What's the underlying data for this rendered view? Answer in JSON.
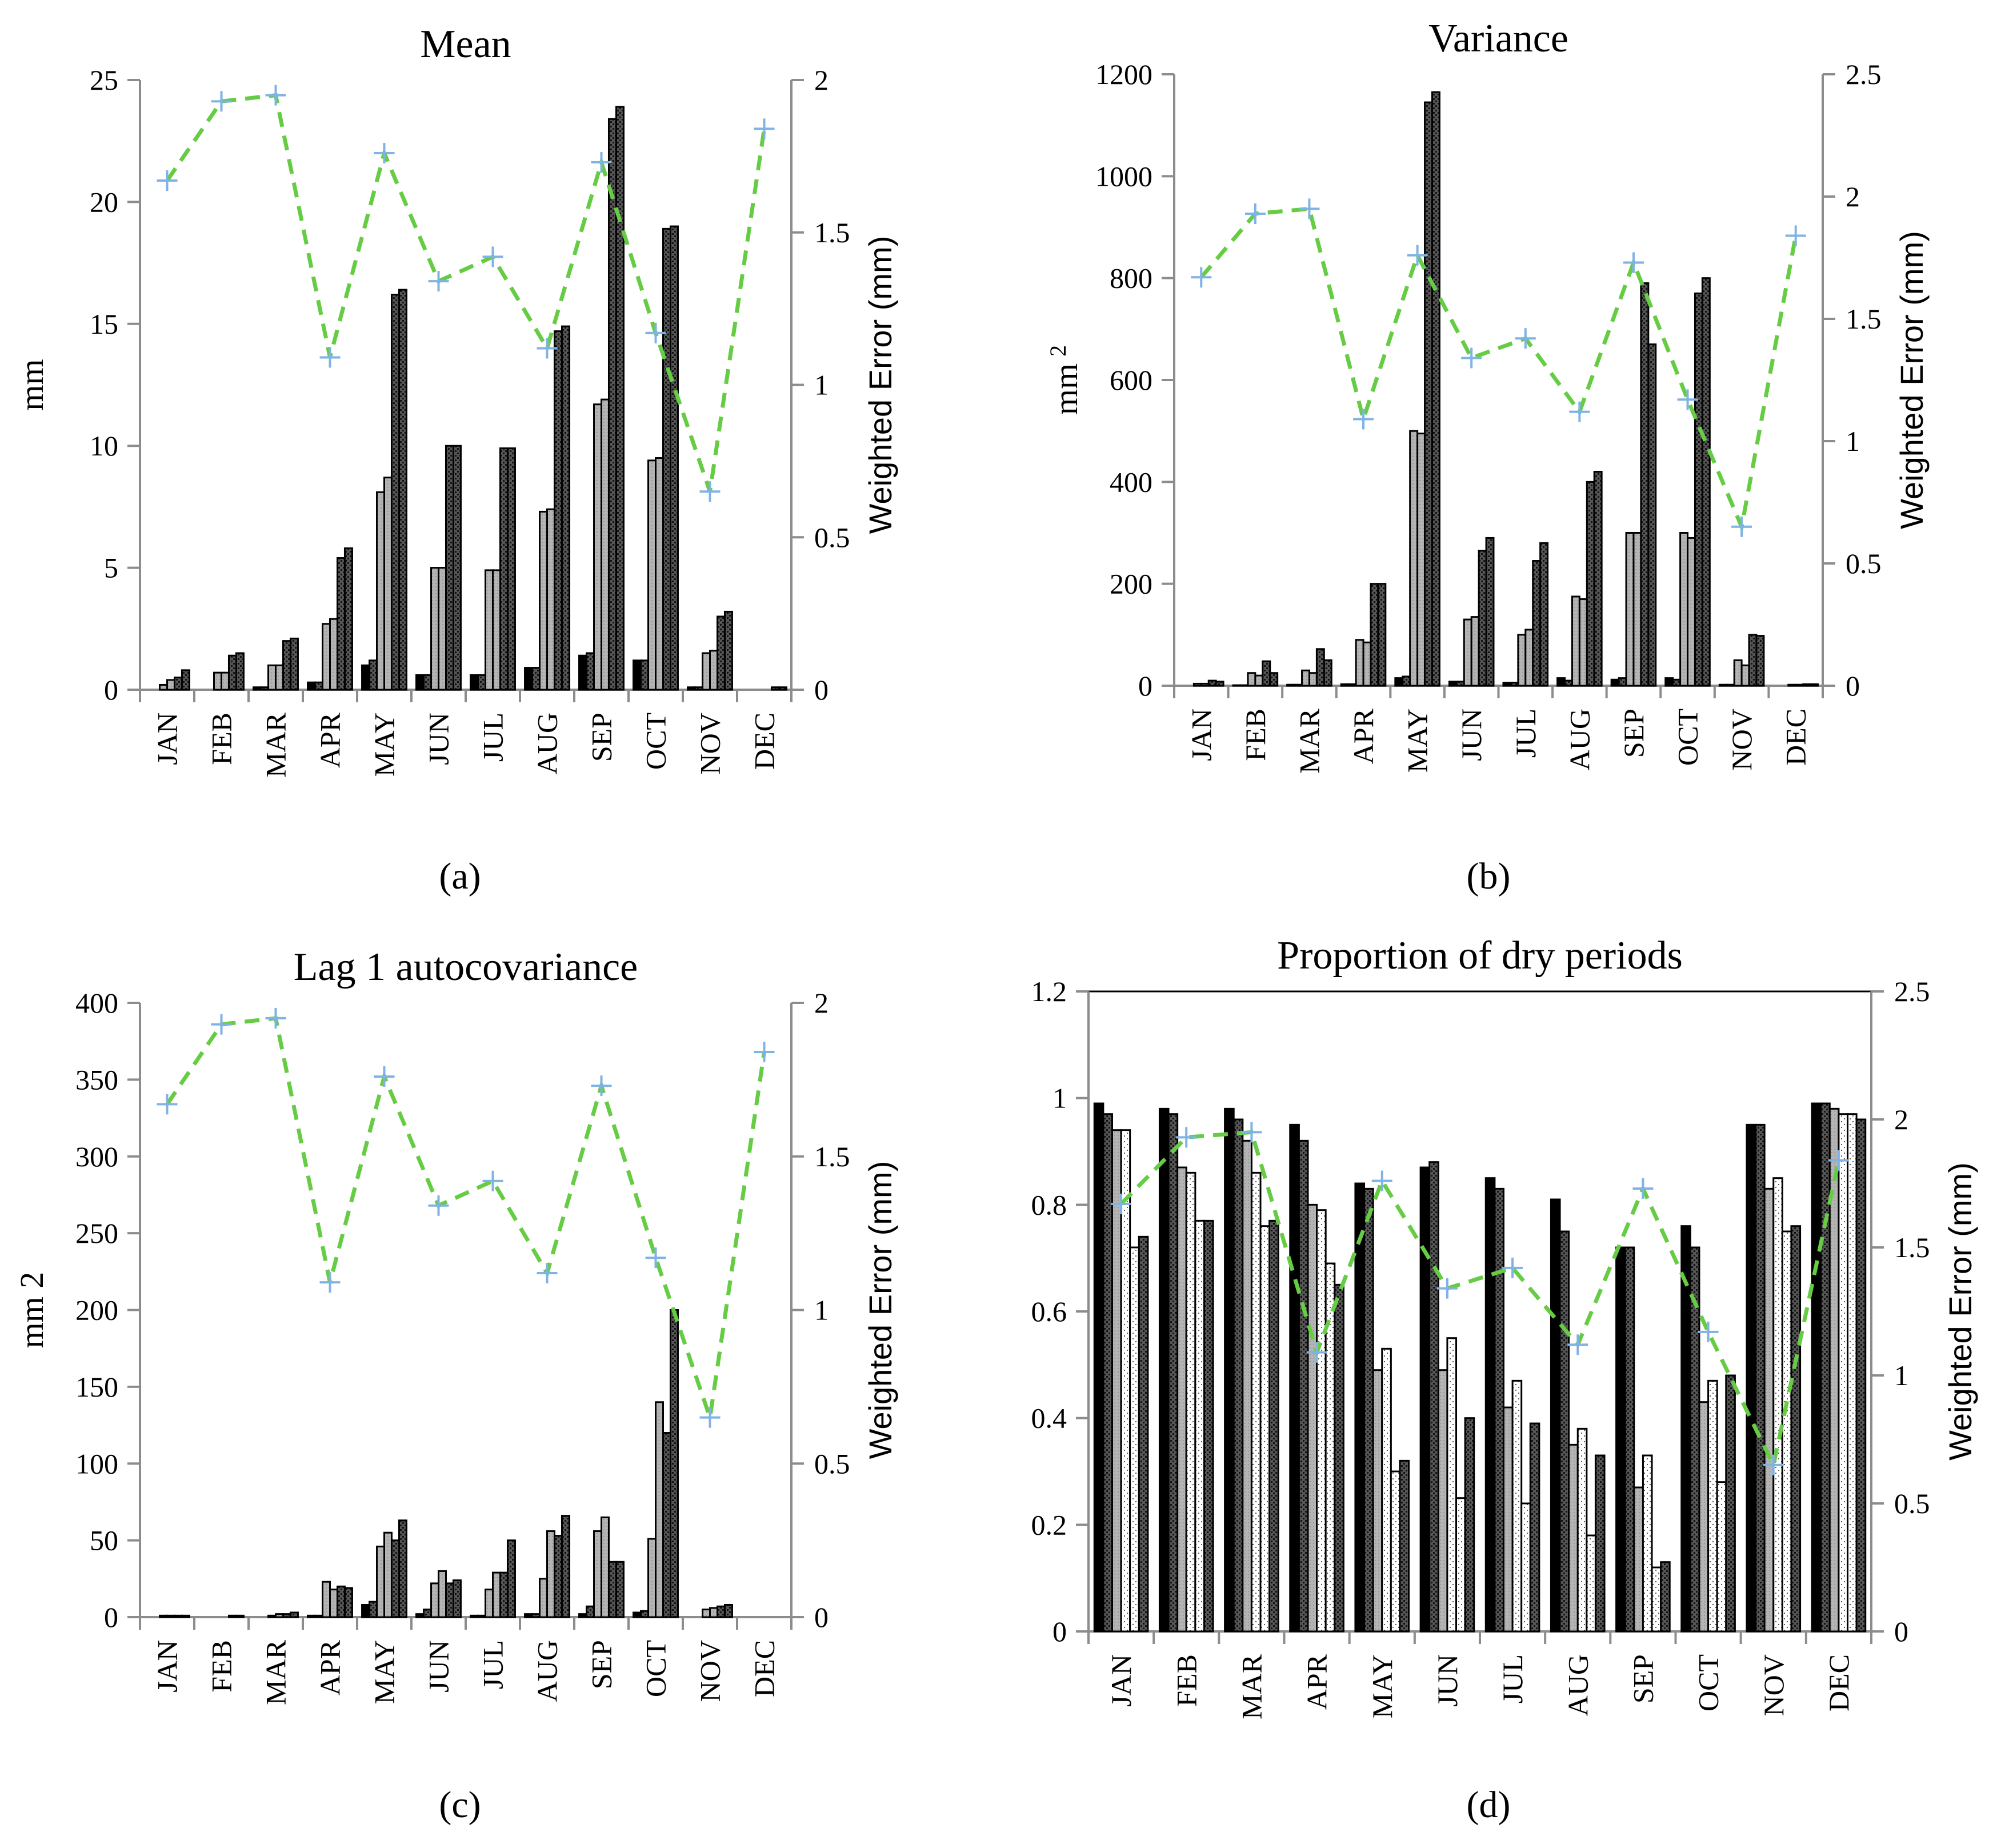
{
  "figure": {
    "colors": {
      "bar_black": "#000000",
      "bar_dark": "#555555",
      "bar_gray": "#b4b4b4",
      "bar_white": "#ffffff",
      "error_line": "#66cc44",
      "error_marker": "#7fb2e5",
      "axis": "#8c8c8c"
    }
  },
  "panel_labels": [
    "(a)",
    "(b)",
    "(c)",
    "(d)"
  ],
  "chart_data": [
    {
      "type": "bar",
      "title": "Mean",
      "panel_label": "(a)",
      "ylabel": "mm",
      "y2label": "Weighted Error (mm)",
      "ylim": [
        0,
        25
      ],
      "yticks": [
        0,
        5,
        10,
        15,
        20,
        25
      ],
      "y2lim": [
        0,
        2
      ],
      "y2ticks": [
        "0",
        "0.5",
        "1",
        "1.5",
        "2"
      ],
      "categories": [
        "JAN",
        "FEB",
        "MAR",
        "APR",
        "MAY",
        "JUN",
        "JUL",
        "AUG",
        "SEP",
        "OCT",
        "NOV",
        "DEC"
      ],
      "series": [
        {
          "name": "bar-1",
          "pattern": "black",
          "values": [
            0.0,
            0.0,
            0.1,
            0.3,
            1.0,
            0.6,
            0.6,
            0.9,
            1.4,
            1.2,
            0.1,
            0.0
          ]
        },
        {
          "name": "bar-2",
          "pattern": "dark",
          "values": [
            0.0,
            0.0,
            0.1,
            0.3,
            1.2,
            0.6,
            0.6,
            0.9,
            1.5,
            1.2,
            0.1,
            0.0
          ]
        },
        {
          "name": "bar-3",
          "pattern": "gray",
          "values": [
            0.2,
            0.7,
            1.0,
            2.7,
            8.1,
            5.0,
            4.9,
            7.3,
            11.7,
            9.4,
            1.5,
            0.0
          ]
        },
        {
          "name": "bar-4",
          "pattern": "gray",
          "values": [
            0.4,
            0.7,
            1.0,
            2.9,
            8.7,
            5.0,
            4.9,
            7.4,
            11.9,
            9.5,
            1.6,
            0.0
          ]
        },
        {
          "name": "bar-5",
          "pattern": "dark",
          "values": [
            0.5,
            1.4,
            2.0,
            5.4,
            16.2,
            10.0,
            9.9,
            14.7,
            23.4,
            18.9,
            3.0,
            0.1
          ]
        },
        {
          "name": "bar-6",
          "pattern": "dark",
          "values": [
            0.8,
            1.5,
            2.1,
            5.8,
            16.4,
            10.0,
            9.9,
            14.9,
            23.9,
            19.0,
            3.2,
            0.1
          ]
        }
      ],
      "error": {
        "name": "Weighted Error (mm)",
        "values": [
          1.67,
          1.93,
          1.95,
          1.09,
          1.76,
          1.34,
          1.42,
          1.12,
          1.73,
          1.17,
          0.65,
          1.84
        ]
      }
    },
    {
      "type": "bar",
      "title": "Variance",
      "panel_label": "(b)",
      "ylabel": "mm 2",
      "ylabel_main": "mm",
      "ylabel_sup": "2",
      "y2label": "Weighted Error (mm)",
      "ylim": [
        0,
        1200
      ],
      "yticks": [
        0,
        200,
        400,
        600,
        800,
        1000,
        1200
      ],
      "y2lim": [
        0,
        2.5
      ],
      "y2ticks": [
        "0",
        "0.5",
        "1",
        "1.5",
        "2",
        "2.5"
      ],
      "categories": [
        "JAN",
        "FEB",
        "MAR",
        "APR",
        "MAY",
        "JUN",
        "JUL",
        "AUG",
        "SEP",
        "OCT",
        "NOV",
        "DEC"
      ],
      "series": [
        {
          "name": "bar-1",
          "pattern": "black",
          "values": [
            0,
            1,
            2,
            3,
            15,
            8,
            6,
            15,
            12,
            15,
            2,
            0
          ]
        },
        {
          "name": "bar-2",
          "pattern": "dark",
          "values": [
            0,
            1,
            2,
            3,
            18,
            8,
            6,
            10,
            15,
            12,
            2,
            0
          ]
        },
        {
          "name": "bar-3",
          "pattern": "gray",
          "values": [
            4,
            25,
            30,
            90,
            500,
            130,
            100,
            175,
            300,
            300,
            50,
            2
          ]
        },
        {
          "name": "bar-4",
          "pattern": "gray",
          "values": [
            4,
            20,
            25,
            85,
            495,
            135,
            110,
            170,
            300,
            290,
            40,
            2
          ]
        },
        {
          "name": "bar-5",
          "pattern": "dark",
          "values": [
            10,
            48,
            72,
            200,
            1145,
            265,
            245,
            400,
            790,
            770,
            100,
            3
          ]
        },
        {
          "name": "bar-6",
          "pattern": "dark",
          "values": [
            8,
            25,
            50,
            200,
            1165,
            290,
            280,
            420,
            670,
            800,
            98,
            3
          ]
        }
      ],
      "error": {
        "name": "Weighted Error (mm)",
        "values": [
          1.67,
          1.93,
          1.95,
          1.09,
          1.76,
          1.34,
          1.42,
          1.12,
          1.73,
          1.17,
          0.65,
          1.84
        ]
      }
    },
    {
      "type": "bar",
      "title": "Lag 1 autocovariance",
      "panel_label": "(c)",
      "ylabel": "mm 2",
      "y2label": "Weighted Error (mm)",
      "ylim": [
        0,
        400
      ],
      "yticks": [
        0,
        50,
        100,
        150,
        200,
        250,
        300,
        350,
        400
      ],
      "y2lim": [
        0,
        2
      ],
      "y2ticks": [
        "0",
        "0.5",
        "1",
        "1.5",
        "2"
      ],
      "categories": [
        "JAN",
        "FEB",
        "MAR",
        "APR",
        "MAY",
        "JUN",
        "JUL",
        "AUG",
        "SEP",
        "OCT",
        "NOV",
        "DEC"
      ],
      "series": [
        {
          "name": "bar-1",
          "pattern": "black",
          "values": [
            0,
            0,
            0,
            1,
            8,
            2,
            1,
            2,
            2,
            3,
            0,
            0
          ]
        },
        {
          "name": "bar-2",
          "pattern": "dark",
          "values": [
            0,
            0,
            0,
            1,
            10,
            5,
            1,
            2,
            7,
            4,
            0,
            0
          ]
        },
        {
          "name": "bar-3",
          "pattern": "gray",
          "values": [
            1,
            0,
            1,
            23,
            46,
            22,
            18,
            25,
            56,
            51,
            5,
            0
          ]
        },
        {
          "name": "bar-4",
          "pattern": "gray",
          "values": [
            1,
            0,
            2,
            18,
            55,
            30,
            29,
            56,
            65,
            140,
            6,
            0
          ]
        },
        {
          "name": "bar-5",
          "pattern": "dark",
          "values": [
            1,
            1,
            2,
            20,
            50,
            22,
            29,
            53,
            36,
            120,
            7,
            0
          ]
        },
        {
          "name": "bar-6",
          "pattern": "dark",
          "values": [
            1,
            1,
            3,
            19,
            63,
            24,
            50,
            66,
            36,
            200,
            8,
            0
          ]
        }
      ],
      "error": {
        "name": "Weighted Error (mm)",
        "values": [
          1.67,
          1.93,
          1.95,
          1.09,
          1.76,
          1.34,
          1.42,
          1.12,
          1.73,
          1.17,
          0.65,
          1.84
        ]
      }
    },
    {
      "type": "bar",
      "title": "Proportion of dry periods",
      "panel_label": "(d)",
      "ylabel": "",
      "y2label": "Weighted Error (mm)",
      "ylim": [
        0,
        1.2
      ],
      "yticks": [
        "0",
        "0.2",
        "0.4",
        "0.6",
        "0.8",
        "1",
        "1.2"
      ],
      "y2lim": [
        0,
        2.5
      ],
      "y2ticks": [
        "0",
        "0.5",
        "1",
        "1.5",
        "2",
        "2.5"
      ],
      "categories": [
        "JAN",
        "FEB",
        "MAR",
        "APR",
        "MAY",
        "JUN",
        "JUL",
        "AUG",
        "SEP",
        "OCT",
        "NOV",
        "DEC"
      ],
      "series": [
        {
          "name": "bar-1",
          "pattern": "black",
          "values": [
            0.99,
            0.98,
            0.98,
            0.95,
            0.84,
            0.87,
            0.85,
            0.81,
            0.72,
            0.76,
            0.95,
            0.99
          ]
        },
        {
          "name": "bar-2",
          "pattern": "dark",
          "values": [
            0.97,
            0.97,
            0.96,
            0.92,
            0.83,
            0.88,
            0.83,
            0.75,
            0.72,
            0.72,
            0.95,
            0.99
          ]
        },
        {
          "name": "bar-3",
          "pattern": "gray",
          "values": [
            0.94,
            0.87,
            0.92,
            0.8,
            0.49,
            0.49,
            0.42,
            0.35,
            0.27,
            0.43,
            0.83,
            0.98
          ]
        },
        {
          "name": "bar-4",
          "pattern": "white",
          "values": [
            0.94,
            0.86,
            0.86,
            0.79,
            0.53,
            0.55,
            0.47,
            0.38,
            0.33,
            0.47,
            0.85,
            0.97
          ]
        },
        {
          "name": "bar-5",
          "pattern": "white",
          "values": [
            0.72,
            0.77,
            0.76,
            0.69,
            0.3,
            0.25,
            0.24,
            0.18,
            0.12,
            0.28,
            0.75,
            0.97
          ]
        },
        {
          "name": "bar-6",
          "pattern": "dark",
          "values": [
            0.74,
            0.77,
            0.77,
            0.65,
            0.32,
            0.4,
            0.39,
            0.33,
            0.13,
            0.48,
            0.76,
            0.96
          ]
        }
      ],
      "error": {
        "name": "Weighted Error (mm)",
        "values": [
          1.67,
          1.93,
          1.95,
          1.09,
          1.76,
          1.34,
          1.42,
          1.12,
          1.73,
          1.17,
          0.65,
          1.84
        ]
      }
    }
  ]
}
